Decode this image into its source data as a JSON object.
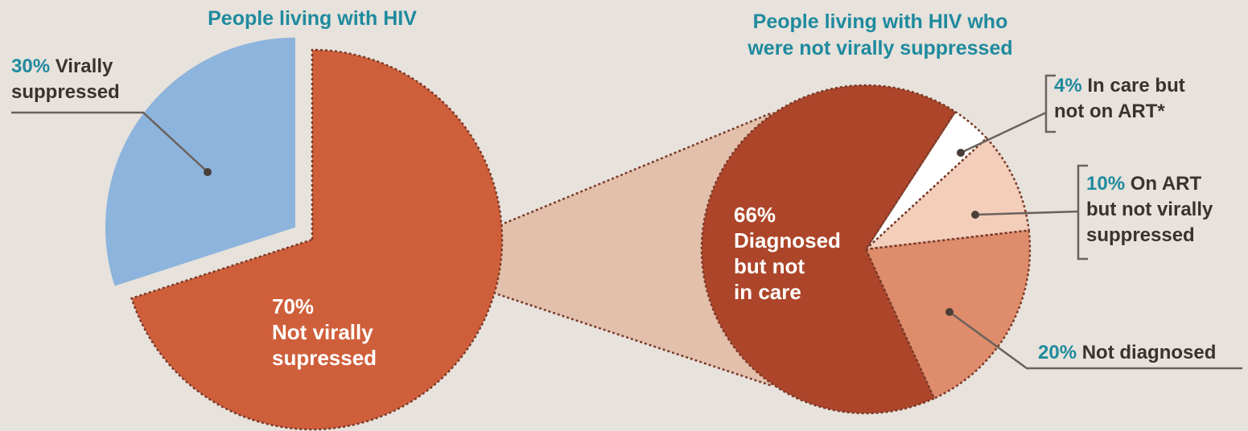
{
  "colors": {
    "background": "#e7e2dc",
    "accent_teal": "#1f8a9e",
    "label_dark": "#3a332d",
    "inside_label": "#ffffff",
    "connector": "#6b625c",
    "zoom_fill": "#e3c0ac"
  },
  "chart_data": [
    {
      "type": "pie",
      "title": "People living with HIV",
      "slices": [
        {
          "pct_label": "30%",
          "text": "Virally suppressed",
          "value": 30,
          "color": "#8db4dc",
          "exploded": true
        },
        {
          "pct_label": "70%",
          "text": "Not virally supressed",
          "value": 70,
          "color": "#cf5f3b",
          "exploded": false
        }
      ]
    },
    {
      "type": "pie",
      "title": "People living with HIV who were not virally suppressed",
      "slices": [
        {
          "pct_label": "66%",
          "text": "Diagnosed but not in care",
          "value": 66,
          "color": "#ad452a"
        },
        {
          "pct_label": "4%",
          "text": "In care but not on ART*",
          "value": 4,
          "color": "#ffffff"
        },
        {
          "pct_label": "10%",
          "text": "On ART but not virally suppressed",
          "value": 10,
          "color": "#f3cfbb"
        },
        {
          "pct_label": "20%",
          "text": "Not diagnosed",
          "value": 20,
          "color": "#df8c6c"
        }
      ]
    }
  ]
}
